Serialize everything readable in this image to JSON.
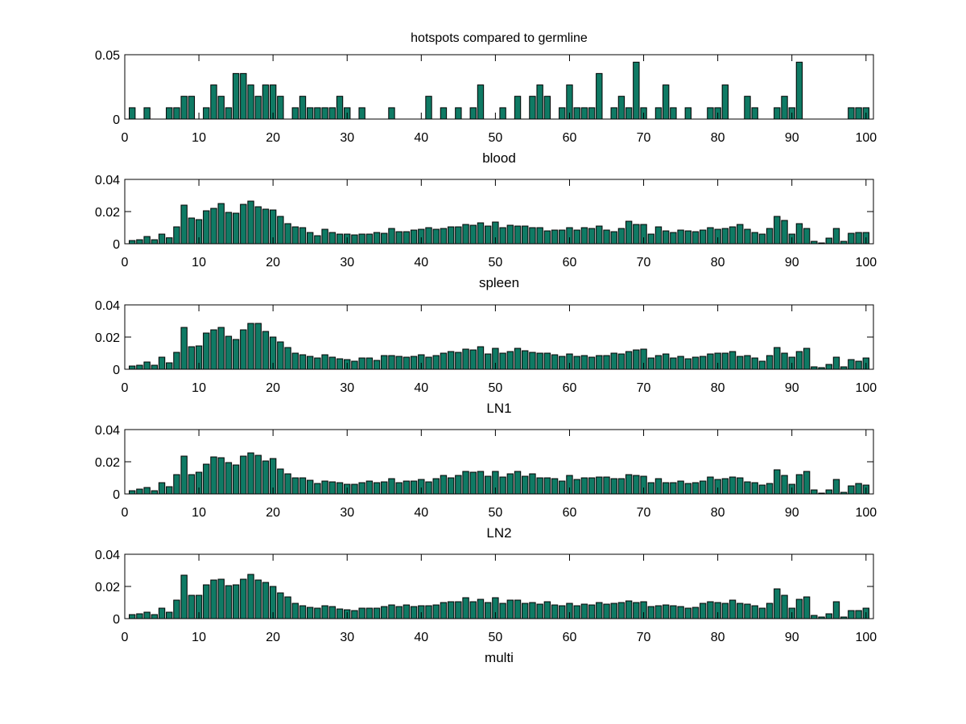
{
  "figure": {
    "title": "hotspots compared to germline",
    "bar_color": "#0f7a64",
    "bar_edge_color": "#000000"
  },
  "chart_data": [
    {
      "type": "bar",
      "title": "hotspots compared to germline",
      "xlabel": "blood",
      "ylabel": "",
      "xlim": [
        0,
        101
      ],
      "ylim": [
        0,
        0.05
      ],
      "xticks": [
        0,
        10,
        20,
        30,
        40,
        50,
        60,
        70,
        80,
        90,
        100
      ],
      "xtick_labels": [
        "0",
        "10",
        "20",
        "30",
        "40",
        "50",
        "60",
        "70",
        "80",
        "90",
        "100"
      ],
      "yticks": [
        0,
        0.05
      ],
      "ytick_labels": [
        "0",
        "0.05"
      ],
      "x": [
        1,
        2,
        3,
        4,
        5,
        6,
        7,
        8,
        9,
        10,
        11,
        12,
        13,
        14,
        15,
        16,
        17,
        18,
        19,
        20,
        21,
        22,
        23,
        24,
        25,
        26,
        27,
        28,
        29,
        30,
        31,
        32,
        33,
        34,
        35,
        36,
        37,
        38,
        39,
        40,
        41,
        42,
        43,
        44,
        45,
        46,
        47,
        48,
        49,
        50,
        51,
        52,
        53,
        54,
        55,
        56,
        57,
        58,
        59,
        60,
        61,
        62,
        63,
        64,
        65,
        66,
        67,
        68,
        69,
        70,
        71,
        72,
        73,
        74,
        75,
        76,
        77,
        78,
        79,
        80,
        81,
        82,
        83,
        84,
        85,
        86,
        87,
        88,
        89,
        90,
        91,
        92,
        93,
        94,
        95,
        96,
        97,
        98,
        99,
        100
      ],
      "values": [
        0.0088,
        0,
        0.0088,
        0,
        0,
        0.0088,
        0.0088,
        0.0177,
        0.0177,
        0,
        0.0088,
        0.0265,
        0.0177,
        0.0088,
        0.0354,
        0.0354,
        0.0265,
        0.0177,
        0.0265,
        0.0265,
        0.0177,
        0,
        0.0088,
        0.0177,
        0.0088,
        0.0088,
        0.0088,
        0.0088,
        0.0177,
        0.0088,
        0,
        0.0088,
        0,
        0,
        0,
        0.0088,
        0,
        0,
        0,
        0,
        0.0177,
        0,
        0.0088,
        0,
        0.0088,
        0,
        0.0088,
        0.0265,
        0,
        0,
        0.0088,
        0,
        0.0177,
        0,
        0.0177,
        0.0265,
        0.0177,
        0,
        0.0088,
        0.0265,
        0.0088,
        0.0088,
        0.0088,
        0.0354,
        0,
        0.0088,
        0.0177,
        0.0088,
        0.0442,
        0.0088,
        0,
        0.0088,
        0.0265,
        0.0088,
        0,
        0.0088,
        0,
        0,
        0.0088,
        0.0088,
        0.0265,
        0,
        0,
        0.0177,
        0.0088,
        0,
        0,
        0.0088,
        0.0177,
        0.0088,
        0.0442,
        0,
        0,
        0,
        0,
        0,
        0,
        0.0088,
        0.0088,
        0.0088
      ],
      "grid": false
    },
    {
      "type": "bar",
      "title": "",
      "xlabel": "spleen",
      "ylabel": "",
      "xlim": [
        0,
        101
      ],
      "ylim": [
        0,
        0.04
      ],
      "xticks": [
        0,
        10,
        20,
        30,
        40,
        50,
        60,
        70,
        80,
        90,
        100
      ],
      "xtick_labels": [
        "0",
        "10",
        "20",
        "30",
        "40",
        "50",
        "60",
        "70",
        "80",
        "90",
        "100"
      ],
      "yticks": [
        0,
        0.02,
        0.04
      ],
      "ytick_labels": [
        "0",
        "0.02",
        "0.04"
      ],
      "x": [
        1,
        2,
        3,
        4,
        5,
        6,
        7,
        8,
        9,
        10,
        11,
        12,
        13,
        14,
        15,
        16,
        17,
        18,
        19,
        20,
        21,
        22,
        23,
        24,
        25,
        26,
        27,
        28,
        29,
        30,
        31,
        32,
        33,
        34,
        35,
        36,
        37,
        38,
        39,
        40,
        41,
        42,
        43,
        44,
        45,
        46,
        47,
        48,
        49,
        50,
        51,
        52,
        53,
        54,
        55,
        56,
        57,
        58,
        59,
        60,
        61,
        62,
        63,
        64,
        65,
        66,
        67,
        68,
        69,
        70,
        71,
        72,
        73,
        74,
        75,
        76,
        77,
        78,
        79,
        80,
        81,
        82,
        83,
        84,
        85,
        86,
        87,
        88,
        89,
        90,
        91,
        92,
        93,
        94,
        95,
        96,
        97,
        98,
        99,
        100
      ],
      "values": [
        0.002,
        0.0025,
        0.0045,
        0.0025,
        0.006,
        0.0037,
        0.0105,
        0.024,
        0.016,
        0.015,
        0.0205,
        0.022,
        0.025,
        0.0195,
        0.019,
        0.0245,
        0.0265,
        0.023,
        0.0215,
        0.021,
        0.017,
        0.0125,
        0.0105,
        0.01,
        0.007,
        0.005,
        0.009,
        0.007,
        0.006,
        0.006,
        0.0055,
        0.006,
        0.006,
        0.007,
        0.0065,
        0.0095,
        0.0075,
        0.0075,
        0.0085,
        0.009,
        0.01,
        0.009,
        0.0095,
        0.0105,
        0.0105,
        0.012,
        0.0115,
        0.013,
        0.011,
        0.0135,
        0.01,
        0.0115,
        0.011,
        0.011,
        0.01,
        0.01,
        0.008,
        0.0085,
        0.0085,
        0.01,
        0.0085,
        0.01,
        0.0095,
        0.011,
        0.0085,
        0.0075,
        0.0095,
        0.014,
        0.012,
        0.012,
        0.006,
        0.0105,
        0.008,
        0.007,
        0.0085,
        0.008,
        0.0075,
        0.0085,
        0.01,
        0.009,
        0.0095,
        0.0105,
        0.012,
        0.009,
        0.007,
        0.006,
        0.0095,
        0.017,
        0.0145,
        0.006,
        0.0125,
        0.0095,
        0.0015,
        0.0005,
        0.0035,
        0.0095,
        0.0015,
        0.0065,
        0.007,
        0.007
      ],
      "grid": false
    },
    {
      "type": "bar",
      "title": "",
      "xlabel": "LN1",
      "ylabel": "",
      "xlim": [
        0,
        101
      ],
      "ylim": [
        0,
        0.04
      ],
      "xticks": [
        0,
        10,
        20,
        30,
        40,
        50,
        60,
        70,
        80,
        90,
        100
      ],
      "xtick_labels": [
        "0",
        "10",
        "20",
        "30",
        "40",
        "50",
        "60",
        "70",
        "80",
        "90",
        "100"
      ],
      "yticks": [
        0,
        0.02,
        0.04
      ],
      "ytick_labels": [
        "0",
        "0.02",
        "0.04"
      ],
      "x": [
        1,
        2,
        3,
        4,
        5,
        6,
        7,
        8,
        9,
        10,
        11,
        12,
        13,
        14,
        15,
        16,
        17,
        18,
        19,
        20,
        21,
        22,
        23,
        24,
        25,
        26,
        27,
        28,
        29,
        30,
        31,
        32,
        33,
        34,
        35,
        36,
        37,
        38,
        39,
        40,
        41,
        42,
        43,
        44,
        45,
        46,
        47,
        48,
        49,
        50,
        51,
        52,
        53,
        54,
        55,
        56,
        57,
        58,
        59,
        60,
        61,
        62,
        63,
        64,
        65,
        66,
        67,
        68,
        69,
        70,
        71,
        72,
        73,
        74,
        75,
        76,
        77,
        78,
        79,
        80,
        81,
        82,
        83,
        84,
        85,
        86,
        87,
        88,
        89,
        90,
        91,
        92,
        93,
        94,
        95,
        96,
        97,
        98,
        99,
        100
      ],
      "values": [
        0.002,
        0.0025,
        0.0045,
        0.0025,
        0.0075,
        0.004,
        0.0105,
        0.026,
        0.014,
        0.0145,
        0.0225,
        0.0245,
        0.026,
        0.0205,
        0.0185,
        0.0245,
        0.0285,
        0.0285,
        0.0235,
        0.02,
        0.017,
        0.0135,
        0.01,
        0.009,
        0.008,
        0.007,
        0.009,
        0.0075,
        0.0065,
        0.006,
        0.005,
        0.007,
        0.007,
        0.0055,
        0.0085,
        0.0085,
        0.008,
        0.0075,
        0.008,
        0.009,
        0.0075,
        0.0085,
        0.01,
        0.011,
        0.0105,
        0.0125,
        0.012,
        0.014,
        0.0095,
        0.013,
        0.01,
        0.011,
        0.013,
        0.0115,
        0.0105,
        0.01,
        0.01,
        0.009,
        0.008,
        0.0095,
        0.008,
        0.0085,
        0.0075,
        0.0085,
        0.0085,
        0.01,
        0.0095,
        0.011,
        0.012,
        0.0125,
        0.007,
        0.0085,
        0.0095,
        0.007,
        0.008,
        0.0065,
        0.0075,
        0.008,
        0.0095,
        0.01,
        0.01,
        0.011,
        0.008,
        0.0085,
        0.007,
        0.005,
        0.0085,
        0.0135,
        0.01,
        0.0075,
        0.011,
        0.013,
        0.0015,
        0.001,
        0.003,
        0.0075,
        0.0015,
        0.006,
        0.005,
        0.007
      ],
      "grid": false
    },
    {
      "type": "bar",
      "title": "",
      "xlabel": "LN2",
      "ylabel": "",
      "xlim": [
        0,
        101
      ],
      "ylim": [
        0,
        0.04
      ],
      "xticks": [
        0,
        10,
        20,
        30,
        40,
        50,
        60,
        70,
        80,
        90,
        100
      ],
      "xtick_labels": [
        "0",
        "10",
        "20",
        "30",
        "40",
        "50",
        "60",
        "70",
        "80",
        "90",
        "100"
      ],
      "yticks": [
        0,
        0.02,
        0.04
      ],
      "ytick_labels": [
        "0",
        "0.02",
        "0.04"
      ],
      "x": [
        1,
        2,
        3,
        4,
        5,
        6,
        7,
        8,
        9,
        10,
        11,
        12,
        13,
        14,
        15,
        16,
        17,
        18,
        19,
        20,
        21,
        22,
        23,
        24,
        25,
        26,
        27,
        28,
        29,
        30,
        31,
        32,
        33,
        34,
        35,
        36,
        37,
        38,
        39,
        40,
        41,
        42,
        43,
        44,
        45,
        46,
        47,
        48,
        49,
        50,
        51,
        52,
        53,
        54,
        55,
        56,
        57,
        58,
        59,
        60,
        61,
        62,
        63,
        64,
        65,
        66,
        67,
        68,
        69,
        70,
        71,
        72,
        73,
        74,
        75,
        76,
        77,
        78,
        79,
        80,
        81,
        82,
        83,
        84,
        85,
        86,
        87,
        88,
        89,
        90,
        91,
        92,
        93,
        94,
        95,
        96,
        97,
        98,
        99,
        100
      ],
      "values": [
        0.002,
        0.003,
        0.004,
        0.002,
        0.007,
        0.0045,
        0.012,
        0.0235,
        0.012,
        0.0135,
        0.0185,
        0.023,
        0.0225,
        0.0195,
        0.018,
        0.0235,
        0.0255,
        0.024,
        0.0205,
        0.022,
        0.0155,
        0.0125,
        0.01,
        0.01,
        0.0085,
        0.0065,
        0.008,
        0.0075,
        0.007,
        0.006,
        0.006,
        0.007,
        0.008,
        0.007,
        0.0075,
        0.0095,
        0.007,
        0.008,
        0.008,
        0.009,
        0.0075,
        0.0095,
        0.0115,
        0.01,
        0.0115,
        0.014,
        0.0135,
        0.014,
        0.011,
        0.014,
        0.0105,
        0.0125,
        0.014,
        0.011,
        0.0125,
        0.01,
        0.01,
        0.0095,
        0.008,
        0.0115,
        0.009,
        0.01,
        0.01,
        0.0105,
        0.0105,
        0.0095,
        0.0095,
        0.012,
        0.0115,
        0.011,
        0.007,
        0.0095,
        0.007,
        0.007,
        0.008,
        0.0065,
        0.007,
        0.008,
        0.0105,
        0.009,
        0.0095,
        0.0105,
        0.01,
        0.0075,
        0.007,
        0.0055,
        0.0065,
        0.015,
        0.0115,
        0.006,
        0.012,
        0.014,
        0.0025,
        0.0005,
        0.0025,
        0.009,
        0.001,
        0.005,
        0.0065,
        0.0055
      ],
      "grid": false
    },
    {
      "type": "bar",
      "title": "",
      "xlabel": "multi",
      "ylabel": "",
      "xlim": [
        0,
        101
      ],
      "ylim": [
        0,
        0.04
      ],
      "xticks": [
        0,
        10,
        20,
        30,
        40,
        50,
        60,
        70,
        80,
        90,
        100
      ],
      "xtick_labels": [
        "0",
        "10",
        "20",
        "30",
        "40",
        "50",
        "60",
        "70",
        "80",
        "90",
        "100"
      ],
      "yticks": [
        0,
        0.02,
        0.04
      ],
      "ytick_labels": [
        "0",
        "0.02",
        "0.04"
      ],
      "x": [
        1,
        2,
        3,
        4,
        5,
        6,
        7,
        8,
        9,
        10,
        11,
        12,
        13,
        14,
        15,
        16,
        17,
        18,
        19,
        20,
        21,
        22,
        23,
        24,
        25,
        26,
        27,
        28,
        29,
        30,
        31,
        32,
        33,
        34,
        35,
        36,
        37,
        38,
        39,
        40,
        41,
        42,
        43,
        44,
        45,
        46,
        47,
        48,
        49,
        50,
        51,
        52,
        53,
        54,
        55,
        56,
        57,
        58,
        59,
        60,
        61,
        62,
        63,
        64,
        65,
        66,
        67,
        68,
        69,
        70,
        71,
        72,
        73,
        74,
        75,
        76,
        77,
        78,
        79,
        80,
        81,
        82,
        83,
        84,
        85,
        86,
        87,
        88,
        89,
        90,
        91,
        92,
        93,
        94,
        95,
        96,
        97,
        98,
        99,
        100
      ],
      "values": [
        0.0025,
        0.003,
        0.004,
        0.0025,
        0.0065,
        0.004,
        0.0115,
        0.027,
        0.0145,
        0.0145,
        0.021,
        0.024,
        0.0245,
        0.0205,
        0.021,
        0.0245,
        0.0275,
        0.024,
        0.0225,
        0.02,
        0.016,
        0.0135,
        0.0095,
        0.008,
        0.007,
        0.0065,
        0.008,
        0.0075,
        0.006,
        0.0055,
        0.005,
        0.0065,
        0.0065,
        0.0065,
        0.0075,
        0.0085,
        0.0075,
        0.0085,
        0.0075,
        0.008,
        0.008,
        0.0085,
        0.01,
        0.0105,
        0.0105,
        0.013,
        0.0105,
        0.012,
        0.01,
        0.013,
        0.0095,
        0.0115,
        0.0115,
        0.0095,
        0.01,
        0.009,
        0.0105,
        0.0085,
        0.008,
        0.0095,
        0.008,
        0.009,
        0.0085,
        0.01,
        0.009,
        0.0095,
        0.01,
        0.011,
        0.01,
        0.0105,
        0.0075,
        0.008,
        0.0085,
        0.008,
        0.0075,
        0.0065,
        0.007,
        0.0095,
        0.0105,
        0.01,
        0.0095,
        0.0115,
        0.0095,
        0.009,
        0.008,
        0.0065,
        0.0095,
        0.0185,
        0.0145,
        0.0065,
        0.012,
        0.0135,
        0.002,
        0.001,
        0.003,
        0.0105,
        0.001,
        0.005,
        0.005,
        0.0065
      ],
      "grid": false
    }
  ]
}
